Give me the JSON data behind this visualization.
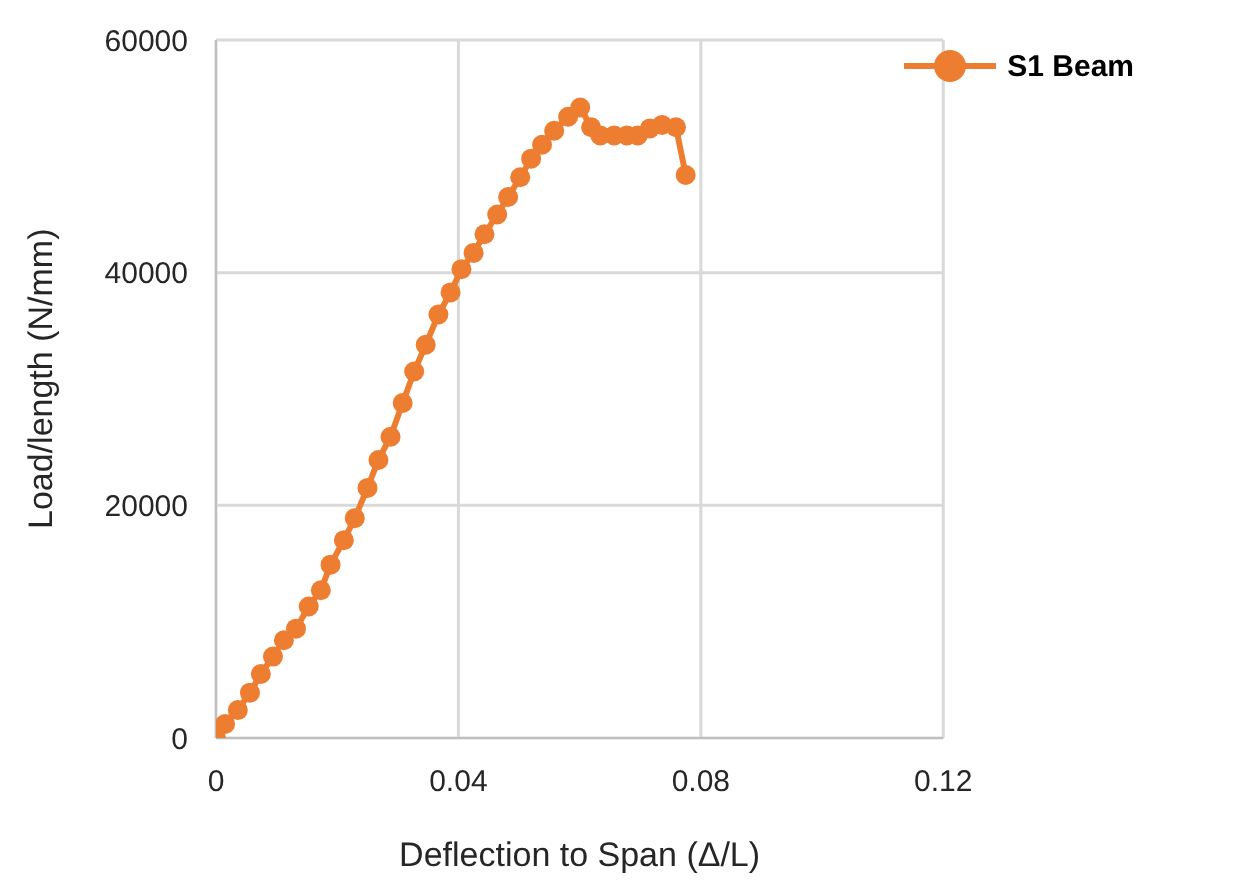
{
  "chart_data": {
    "type": "line",
    "xlabel": "Deflection to Span (Δ/L)",
    "ylabel": "Load/length (N/mm)",
    "xlim": [
      0,
      0.12
    ],
    "xticks": [
      0,
      0.04,
      0.08,
      0.12
    ],
    "ylim": [
      0,
      60000
    ],
    "yticks": [
      0,
      20000,
      40000,
      60000
    ],
    "grid": true,
    "legend": "top right",
    "marker": "circle",
    "line_style": "solid",
    "series": [
      {
        "name": "S1 Beam",
        "color": "#ed7d31",
        "x": [
          0,
          0.0015,
          0.0036,
          0.0056,
          0.0074,
          0.0094,
          0.0112,
          0.0132,
          0.0153,
          0.0173,
          0.0189,
          0.0211,
          0.0229,
          0.025,
          0.0268,
          0.0288,
          0.0308,
          0.0327,
          0.0346,
          0.0367,
          0.0387,
          0.0405,
          0.0425,
          0.0443,
          0.0464,
          0.0482,
          0.0502,
          0.052,
          0.0538,
          0.0558,
          0.0581,
          0.0601,
          0.0619,
          0.0634,
          0.0657,
          0.0678,
          0.0696,
          0.0716,
          0.0736,
          0.0759,
          0.0775
        ],
        "values": [
          0,
          1200,
          2400,
          3900,
          5500,
          7000,
          8400,
          9400,
          11300,
          12700,
          14900,
          17000,
          18900,
          21500,
          23900,
          25900,
          28800,
          31500,
          33800,
          36400,
          38300,
          40300,
          41700,
          43300,
          45000,
          46500,
          48200,
          49800,
          51000,
          52200,
          53400,
          54200,
          52500,
          51800,
          51800,
          51800,
          51800,
          52400,
          52700,
          52500,
          48400
        ]
      }
    ]
  }
}
